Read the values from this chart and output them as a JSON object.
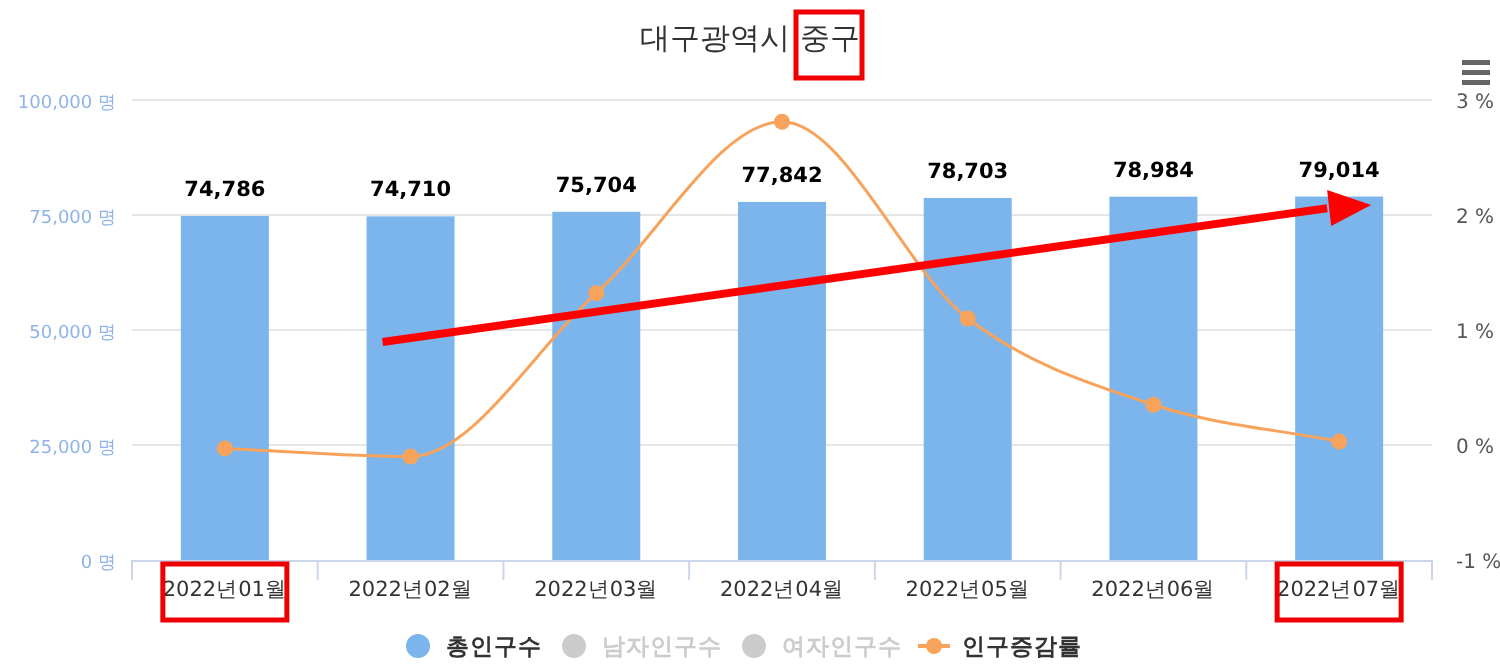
{
  "chart_data": {
    "type": "bar",
    "title": "대구광역시 중구",
    "categories": [
      "2022년01월",
      "2022년02월",
      "2022년03월",
      "2022년04월",
      "2022년05월",
      "2022년06월",
      "2022년07월"
    ],
    "series": [
      {
        "name": "총인구수",
        "color": "#7cb5ec",
        "values": [
          74786,
          74710,
          75704,
          77842,
          78703,
          78984,
          79014
        ],
        "value_labels": [
          "74,786",
          "74,710",
          "75,704",
          "77,842",
          "78,703",
          "78,984",
          "79,014"
        ]
      },
      {
        "name": "남자인구수",
        "color": "#cccccc",
        "values": [
          null,
          null,
          null,
          null,
          null,
          null,
          null
        ]
      },
      {
        "name": "여자인구수",
        "color": "#cccccc",
        "values": [
          null,
          null,
          null,
          null,
          null,
          null,
          null
        ]
      },
      {
        "name": "인구증감률",
        "type": "line",
        "axis": "y2",
        "color": "#f7a35c",
        "values": [
          -0.03,
          -0.1,
          1.32,
          2.81,
          1.1,
          0.35,
          0.03
        ]
      }
    ],
    "ylim": [
      0,
      100000
    ],
    "yticks": [
      {
        "value": 0,
        "label": "0 명"
      },
      {
        "value": 25000,
        "label": "25,000 명"
      },
      {
        "value": 50000,
        "label": "50,000 명"
      },
      {
        "value": 75000,
        "label": "75,000 명"
      },
      {
        "value": 100000,
        "label": "100,000 명"
      }
    ],
    "y2lim": [
      -1,
      3
    ],
    "y2ticks": [
      {
        "value": -1,
        "label": "-1 %"
      },
      {
        "value": 0,
        "label": "0 %"
      },
      {
        "value": 1,
        "label": "1 %"
      },
      {
        "value": 2,
        "label": "2 %"
      },
      {
        "value": 3,
        "label": "3 %"
      }
    ],
    "grid": "y",
    "legend": "bottom",
    "marker": "circle"
  }
}
